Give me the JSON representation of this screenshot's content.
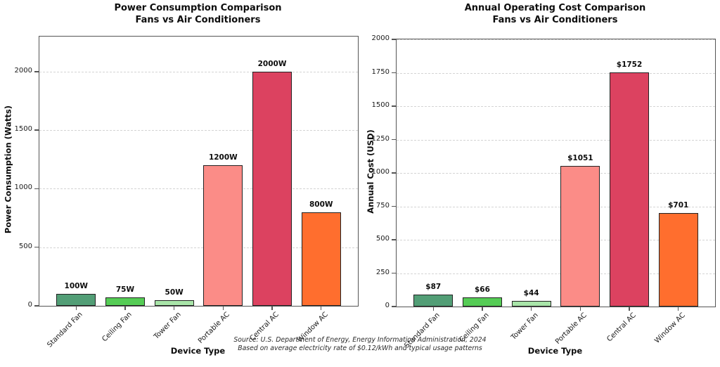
{
  "figure": {
    "source_line1": "Source: U.S. Department of Energy, Energy Information Administration, 2024",
    "source_line2": "Based on average electricity rate of $0.12/kWh and typical usage patterns"
  },
  "chart_data": [
    {
      "type": "bar",
      "title_line1": "Power Consumption Comparison",
      "title_line2": "Fans vs Air Conditioners",
      "xlabel": "Device Type",
      "ylabel": "Power Consumption (Watts)",
      "categories": [
        "Standard Fan",
        "Ceiling Fan",
        "Tower Fan",
        "Portable AC",
        "Central AC",
        "Window AC"
      ],
      "values": [
        100,
        75,
        50,
        1200,
        2000,
        800
      ],
      "value_labels": [
        "100W",
        "75W",
        "50W",
        "1200W",
        "2000W",
        "800W"
      ],
      "bar_colors": [
        "#529e76",
        "#55cc55",
        "#a9e5a9",
        "#fb8c87",
        "#dc4260",
        "#ff6e2e"
      ],
      "yticks": [
        0,
        500,
        1000,
        1500,
        2000
      ],
      "ylim": [
        0,
        2300
      ],
      "grid": "horizontal-dashed",
      "legend": null
    },
    {
      "type": "bar",
      "title_line1": "Annual Operating Cost Comparison",
      "title_line2": "Fans vs Air Conditioners",
      "xlabel": "Device Type",
      "ylabel": "Annual Cost (USD)",
      "categories": [
        "Standard Fan",
        "Ceiling Fan",
        "Tower Fan",
        "Portable AC",
        "Central AC",
        "Window AC"
      ],
      "values": [
        87,
        66,
        44,
        1051,
        1752,
        701
      ],
      "value_labels": [
        "$87",
        "$66",
        "$44",
        "$1051",
        "$1752",
        "$701"
      ],
      "bar_colors": [
        "#529e76",
        "#55cc55",
        "#a9e5a9",
        "#fb8c87",
        "#dc4260",
        "#ff6e2e"
      ],
      "yticks": [
        0,
        250,
        500,
        750,
        1000,
        1250,
        1500,
        1750,
        2000
      ],
      "ylim": [
        0,
        2000
      ],
      "grid": "horizontal-dashed",
      "legend": null
    }
  ]
}
